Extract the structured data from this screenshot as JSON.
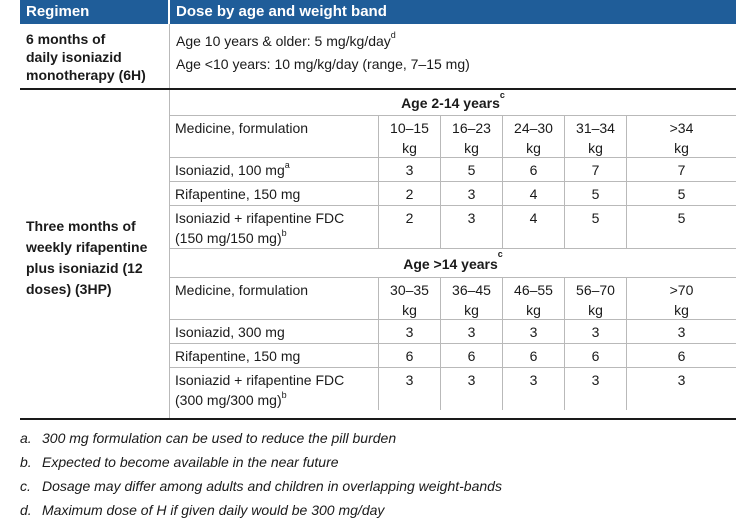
{
  "header": {
    "regimen": "Regimen",
    "dose": "Dose by age and weight band"
  },
  "six_h": {
    "name_lines": [
      "6 months of",
      "daily isoniazid",
      "monotherapy (6H)"
    ],
    "dose_line_1": "Age 10 years & older: 5 mg/kg/day",
    "dose_line_1_sup": "d",
    "dose_line_2": "Age <10 years: 10 mg/kg/day (range, 7–15 mg)"
  },
  "three_hp": {
    "name_lines": [
      "Three months of",
      "weekly rifapentine",
      "plus isoniazid (12",
      "doses) (3HP)"
    ],
    "group1": {
      "title": "Age 2-14 years",
      "title_sup": "c",
      "header": "Medicine, formulation",
      "bands": [
        [
          "10–15",
          "kg"
        ],
        [
          "16–23",
          "kg"
        ],
        [
          "24–30",
          "kg"
        ],
        [
          "31–34",
          "kg"
        ],
        [
          ">34",
          "kg"
        ]
      ],
      "rows": [
        {
          "label": "Isoniazid, 100 mg",
          "sup": "a",
          "values": [
            "3",
            "5",
            "6",
            "7",
            "7"
          ]
        },
        {
          "label": "Rifapentine, 150 mg",
          "sup": "",
          "values": [
            "2",
            "3",
            "4",
            "5",
            "5"
          ]
        },
        {
          "label": "Isoniazid + rifapentine FDC",
          "label2": "(150 mg/150 mg)",
          "sup": "b",
          "values": [
            "2",
            "3",
            "4",
            "5",
            "5"
          ]
        }
      ]
    },
    "group2": {
      "title": "Age >14 years",
      "title_sup": "c",
      "header": "Medicine, formulation",
      "bands": [
        [
          "30–35",
          "kg"
        ],
        [
          "36–45",
          "kg"
        ],
        [
          "46–55",
          "kg"
        ],
        [
          "56–70",
          "kg"
        ],
        [
          ">70",
          "kg"
        ]
      ],
      "rows": [
        {
          "label": "Isoniazid, 300 mg",
          "sup": "",
          "values": [
            "3",
            "3",
            "3",
            "3",
            "3"
          ]
        },
        {
          "label": "Rifapentine, 150 mg",
          "sup": "",
          "values": [
            "6",
            "6",
            "6",
            "6",
            "6"
          ]
        },
        {
          "label": "Isoniazid + rifapentine FDC",
          "label2": "(300 mg/300 mg)",
          "sup": "b",
          "values": [
            "3",
            "3",
            "3",
            "3",
            "3"
          ]
        }
      ]
    }
  },
  "notes": [
    {
      "letter": "a.",
      "text": "300 mg formulation can be used to reduce the pill burden"
    },
    {
      "letter": "b.",
      "text": "Expected to become available in the near future"
    },
    {
      "letter": "c.",
      "text": "Dosage may differ among adults and children in overlapping weight-bands"
    },
    {
      "letter": "d.",
      "text": "Maximum dose of H if given daily would be 300 mg/day"
    }
  ]
}
